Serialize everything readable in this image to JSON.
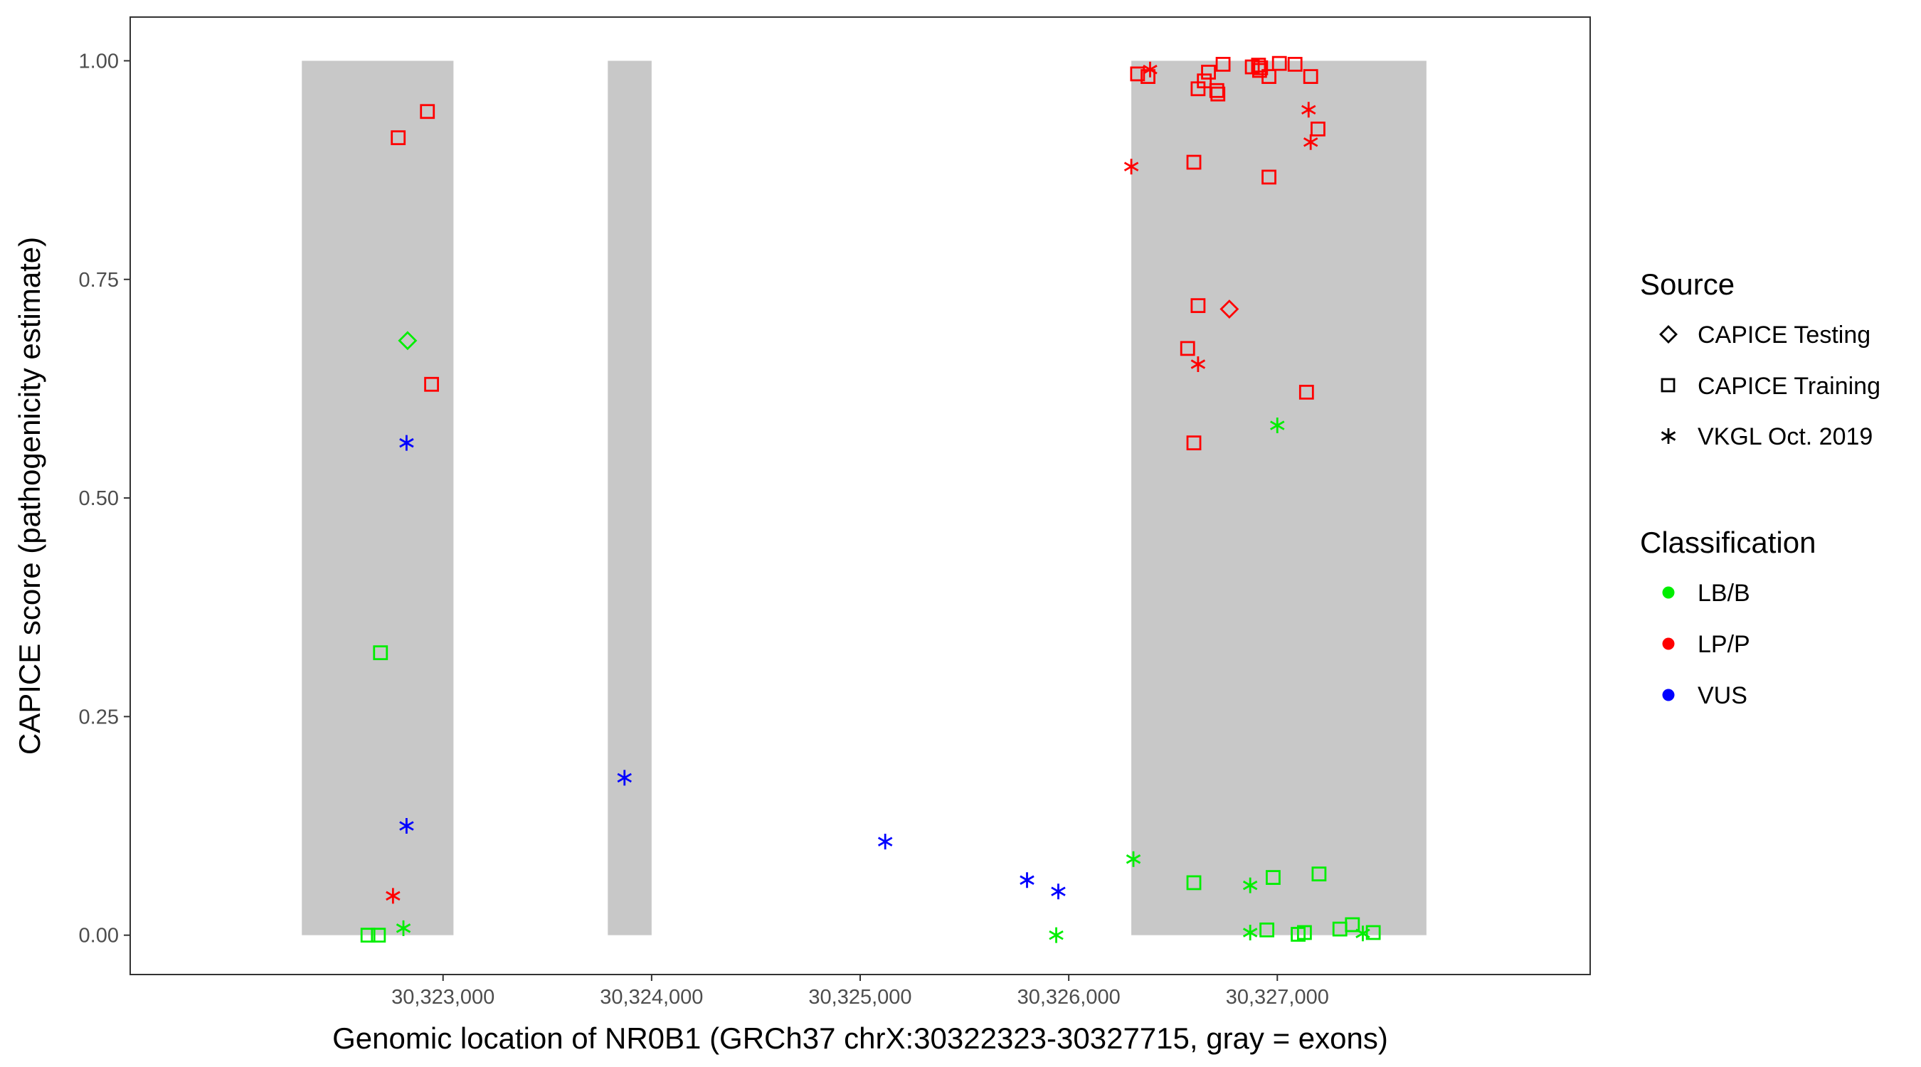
{
  "chart_data": {
    "type": "scatter",
    "xlabel": "Genomic location of NR0B1 (GRCh37 chrX:30322323-30327715, gray = exons)",
    "ylabel": "CAPICE score (pathogenicity estimate)",
    "xlim": [
      30321500,
      30328500
    ],
    "ylim": [
      -0.045,
      1.05
    ],
    "x_ticks": [
      30323000,
      30324000,
      30325000,
      30326000,
      30327000
    ],
    "x_tick_labels": [
      "30,323,000",
      "30,324,000",
      "30,325,000",
      "30,326,000",
      "30,327,000"
    ],
    "y_ticks": [
      0.0,
      0.25,
      0.5,
      0.75,
      1.0
    ],
    "y_tick_labels": [
      "0.00",
      "0.25",
      "0.50",
      "0.75",
      "1.00"
    ],
    "grid": false,
    "exons": [
      {
        "start": 30322323,
        "end": 30323050
      },
      {
        "start": 30323790,
        "end": 30324000
      },
      {
        "start": 30326300,
        "end": 30327715
      }
    ],
    "exon_color": "#c8c8c8",
    "legend_position": "right",
    "legend_source": {
      "title": "Source",
      "entries": [
        {
          "label": "CAPICE Testing",
          "shape": "diamond"
        },
        {
          "label": "CAPICE Training",
          "shape": "square"
        },
        {
          "label": "VKGL Oct. 2019",
          "shape": "asterisk"
        }
      ]
    },
    "legend_classification": {
      "title": "Classification",
      "entries": [
        {
          "label": "LB/B",
          "color": "#00ee00"
        },
        {
          "label": "LP/P",
          "color": "#ff0000"
        },
        {
          "label": "VUS",
          "color": "#0000ff"
        }
      ]
    },
    "colors": {
      "LB/B": "#00ee00",
      "LP/P": "#ff0000",
      "VUS": "#0000ff"
    },
    "points": [
      {
        "x": 30322785,
        "y": 0.912,
        "source": "CAPICE Training",
        "class": "LP/P"
      },
      {
        "x": 30322925,
        "y": 0.942,
        "source": "CAPICE Training",
        "class": "LP/P"
      },
      {
        "x": 30322830,
        "y": 0.68,
        "source": "CAPICE Testing",
        "class": "LB/B"
      },
      {
        "x": 30322945,
        "y": 0.63,
        "source": "CAPICE Training",
        "class": "LP/P"
      },
      {
        "x": 30322825,
        "y": 0.563,
        "source": "VKGL Oct. 2019",
        "class": "VUS"
      },
      {
        "x": 30322700,
        "y": 0.323,
        "source": "CAPICE Training",
        "class": "LB/B"
      },
      {
        "x": 30322825,
        "y": 0.125,
        "source": "VKGL Oct. 2019",
        "class": "VUS"
      },
      {
        "x": 30322760,
        "y": 0.045,
        "source": "VKGL Oct. 2019",
        "class": "LP/P"
      },
      {
        "x": 30322810,
        "y": 0.008,
        "source": "VKGL Oct. 2019",
        "class": "LB/B"
      },
      {
        "x": 30322640,
        "y": 0.0,
        "source": "CAPICE Training",
        "class": "LB/B"
      },
      {
        "x": 30322690,
        "y": 0.0,
        "source": "CAPICE Training",
        "class": "LB/B"
      },
      {
        "x": 30323870,
        "y": 0.18,
        "source": "VKGL Oct. 2019",
        "class": "VUS"
      },
      {
        "x": 30325120,
        "y": 0.107,
        "source": "VKGL Oct. 2019",
        "class": "VUS"
      },
      {
        "x": 30325800,
        "y": 0.063,
        "source": "VKGL Oct. 2019",
        "class": "VUS"
      },
      {
        "x": 30325950,
        "y": 0.05,
        "source": "VKGL Oct. 2019",
        "class": "VUS"
      },
      {
        "x": 30325940,
        "y": 0.0,
        "source": "VKGL Oct. 2019",
        "class": "LB/B"
      },
      {
        "x": 30326330,
        "y": 0.985,
        "source": "CAPICE Training",
        "class": "LP/P"
      },
      {
        "x": 30326380,
        "y": 0.982,
        "source": "CAPICE Training",
        "class": "LP/P"
      },
      {
        "x": 30326390,
        "y": 0.99,
        "source": "VKGL Oct. 2019",
        "class": "LP/P"
      },
      {
        "x": 30326620,
        "y": 0.968,
        "source": "CAPICE Training",
        "class": "LP/P"
      },
      {
        "x": 30326650,
        "y": 0.977,
        "source": "CAPICE Training",
        "class": "LP/P"
      },
      {
        "x": 30326670,
        "y": 0.987,
        "source": "CAPICE Training",
        "class": "LP/P"
      },
      {
        "x": 30326710,
        "y": 0.966,
        "source": "CAPICE Training",
        "class": "LP/P"
      },
      {
        "x": 30326715,
        "y": 0.962,
        "source": "CAPICE Training",
        "class": "LP/P"
      },
      {
        "x": 30326740,
        "y": 0.996,
        "source": "CAPICE Training",
        "class": "LP/P"
      },
      {
        "x": 30326880,
        "y": 0.993,
        "source": "CAPICE Training",
        "class": "LP/P"
      },
      {
        "x": 30326910,
        "y": 0.995,
        "source": "CAPICE Training",
        "class": "LP/P"
      },
      {
        "x": 30326915,
        "y": 0.989,
        "source": "CAPICE Training",
        "class": "LP/P"
      },
      {
        "x": 30326920,
        "y": 0.992,
        "source": "CAPICE Training",
        "class": "LP/P"
      },
      {
        "x": 30326960,
        "y": 0.982,
        "source": "CAPICE Training",
        "class": "LP/P"
      },
      {
        "x": 30327010,
        "y": 0.997,
        "source": "CAPICE Training",
        "class": "LP/P"
      },
      {
        "x": 30327085,
        "y": 0.996,
        "source": "CAPICE Training",
        "class": "LP/P"
      },
      {
        "x": 30327160,
        "y": 0.982,
        "source": "CAPICE Training",
        "class": "LP/P"
      },
      {
        "x": 30327150,
        "y": 0.944,
        "source": "VKGL Oct. 2019",
        "class": "LP/P"
      },
      {
        "x": 30327195,
        "y": 0.922,
        "source": "CAPICE Training",
        "class": "LP/P"
      },
      {
        "x": 30327160,
        "y": 0.907,
        "source": "VKGL Oct. 2019",
        "class": "LP/P"
      },
      {
        "x": 30326300,
        "y": 0.879,
        "source": "VKGL Oct. 2019",
        "class": "LP/P"
      },
      {
        "x": 30326600,
        "y": 0.884,
        "source": "CAPICE Training",
        "class": "LP/P"
      },
      {
        "x": 30326960,
        "y": 0.867,
        "source": "CAPICE Training",
        "class": "LP/P"
      },
      {
        "x": 30326620,
        "y": 0.72,
        "source": "CAPICE Training",
        "class": "LP/P"
      },
      {
        "x": 30326770,
        "y": 0.716,
        "source": "CAPICE Testing",
        "class": "LP/P"
      },
      {
        "x": 30326570,
        "y": 0.671,
        "source": "CAPICE Training",
        "class": "LP/P"
      },
      {
        "x": 30326620,
        "y": 0.653,
        "source": "VKGL Oct. 2019",
        "class": "LP/P"
      },
      {
        "x": 30327140,
        "y": 0.621,
        "source": "CAPICE Training",
        "class": "LP/P"
      },
      {
        "x": 30327000,
        "y": 0.583,
        "source": "VKGL Oct. 2019",
        "class": "LB/B"
      },
      {
        "x": 30326600,
        "y": 0.563,
        "source": "CAPICE Training",
        "class": "LP/P"
      },
      {
        "x": 30326310,
        "y": 0.087,
        "source": "VKGL Oct. 2019",
        "class": "LB/B"
      },
      {
        "x": 30326600,
        "y": 0.06,
        "source": "CAPICE Training",
        "class": "LB/B"
      },
      {
        "x": 30326870,
        "y": 0.057,
        "source": "VKGL Oct. 2019",
        "class": "LB/B"
      },
      {
        "x": 30326980,
        "y": 0.066,
        "source": "CAPICE Training",
        "class": "LB/B"
      },
      {
        "x": 30327200,
        "y": 0.07,
        "source": "CAPICE Training",
        "class": "LB/B"
      },
      {
        "x": 30326870,
        "y": 0.003,
        "source": "VKGL Oct. 2019",
        "class": "LB/B"
      },
      {
        "x": 30326950,
        "y": 0.006,
        "source": "CAPICE Training",
        "class": "LB/B"
      },
      {
        "x": 30327100,
        "y": 0.001,
        "source": "CAPICE Training",
        "class": "LB/B"
      },
      {
        "x": 30327130,
        "y": 0.003,
        "source": "CAPICE Training",
        "class": "LB/B"
      },
      {
        "x": 30327300,
        "y": 0.007,
        "source": "CAPICE Training",
        "class": "LB/B"
      },
      {
        "x": 30327360,
        "y": 0.012,
        "source": "CAPICE Training",
        "class": "LB/B"
      },
      {
        "x": 30327410,
        "y": 0.002,
        "source": "VKGL Oct. 2019",
        "class": "LB/B"
      },
      {
        "x": 30327460,
        "y": 0.003,
        "source": "CAPICE Training",
        "class": "LB/B"
      }
    ]
  }
}
